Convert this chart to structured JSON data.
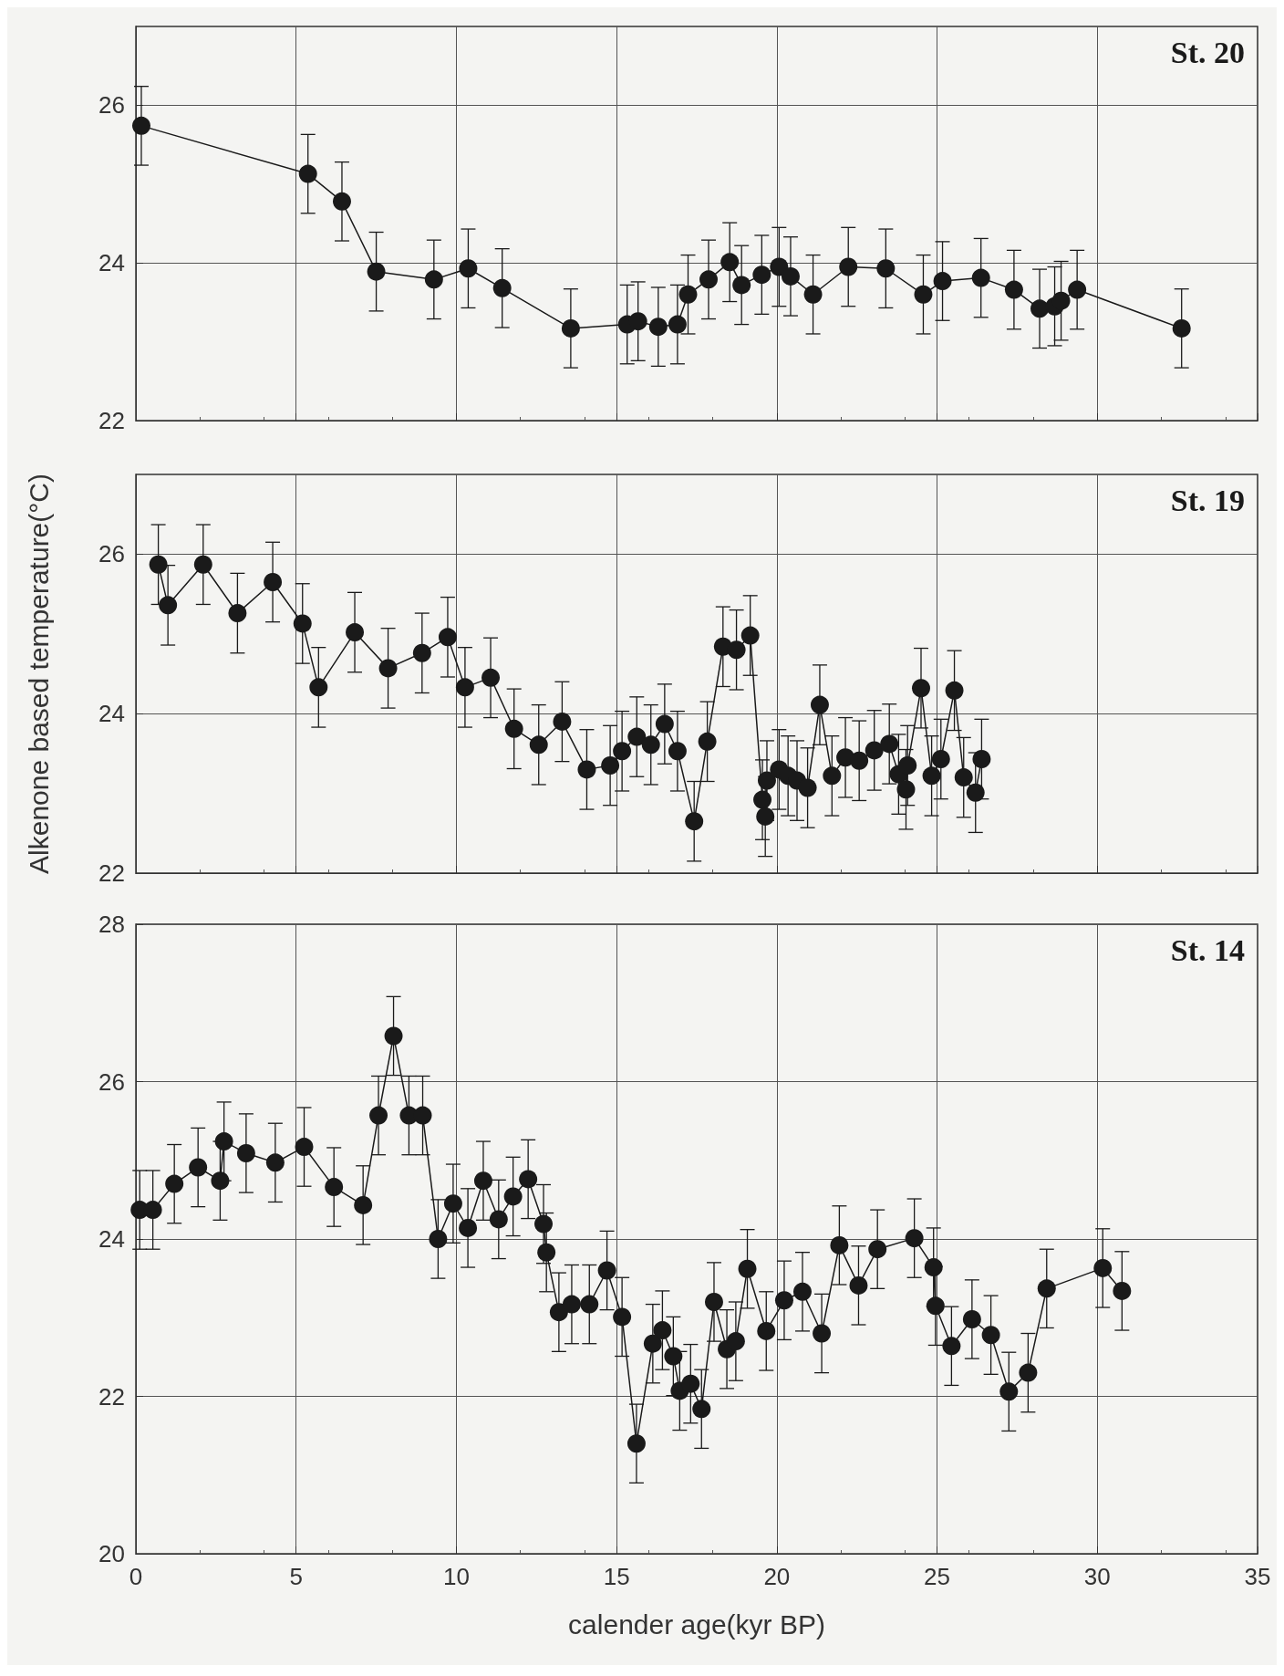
{
  "chart_data": [
    {
      "type": "line",
      "title": "St. 20",
      "xlim": [
        0,
        35
      ],
      "xticks": [
        0,
        5,
        10,
        15,
        20,
        25,
        30,
        35
      ],
      "ylim": [
        22,
        27
      ],
      "yticks": [
        22,
        24,
        26
      ],
      "grid": true,
      "marker": "circle",
      "line_style": "solid",
      "tick_labels": "y",
      "series": [
        {
          "color": "#1a1a1a",
          "x": [
            0.17,
            5.37,
            6.43,
            7.5,
            9.3,
            10.37,
            11.43,
            13.57,
            15.33,
            15.67,
            16.3,
            16.9,
            17.23,
            17.87,
            18.53,
            18.9,
            19.53,
            20.07,
            20.43,
            21.13,
            22.23,
            23.4,
            24.57,
            25.17,
            26.37,
            27.4,
            28.2,
            28.67,
            28.87,
            29.37,
            32.63
          ],
          "values": [
            25.74,
            25.13,
            24.78,
            23.89,
            23.79,
            23.93,
            23.68,
            23.17,
            23.22,
            23.26,
            23.19,
            23.22,
            23.6,
            23.79,
            24.01,
            23.72,
            23.85,
            23.95,
            23.83,
            23.6,
            23.95,
            23.93,
            23.6,
            23.77,
            23.81,
            23.66,
            23.42,
            23.45,
            23.52,
            23.66,
            23.17
          ],
          "errors": [
            0.5,
            0.5,
            0.5,
            0.5,
            0.5,
            0.5,
            0.5,
            0.5,
            0.5,
            0.5,
            0.5,
            0.5,
            0.5,
            0.5,
            0.5,
            0.5,
            0.5,
            0.5,
            0.5,
            0.5,
            0.5,
            0.5,
            0.5,
            0.5,
            0.5,
            0.5,
            0.5,
            0.5,
            0.5,
            0.5,
            0.5
          ]
        }
      ]
    },
    {
      "type": "line",
      "title": "St. 19",
      "ylabel": "Alkenone based temperature(°C)",
      "xlim": [
        0,
        35
      ],
      "xticks": [
        0,
        5,
        10,
        15,
        20,
        25,
        30,
        35
      ],
      "ylim": [
        22,
        27
      ],
      "yticks": [
        22,
        24,
        26
      ],
      "grid": true,
      "marker": "circle",
      "line_style": "solid",
      "tick_labels": "y",
      "series": [
        {
          "color": "#1a1a1a",
          "x": [
            0.7,
            1.0,
            2.1,
            3.17,
            4.27,
            5.2,
            5.7,
            6.83,
            7.87,
            8.93,
            9.73,
            10.27,
            11.07,
            11.8,
            12.57,
            13.3,
            14.07,
            14.8,
            15.17,
            15.63,
            16.07,
            16.5,
            16.9,
            17.42,
            17.83,
            18.32,
            18.74,
            19.17,
            19.55,
            19.64,
            19.69,
            20.07,
            20.35,
            20.63,
            20.96,
            21.34,
            21.72,
            22.14,
            22.57,
            23.04,
            23.51,
            23.8,
            24.03,
            24.08,
            24.5,
            24.83,
            25.12,
            25.54,
            25.83,
            26.2,
            26.39
          ],
          "values": [
            25.87,
            25.36,
            25.87,
            25.26,
            25.65,
            25.13,
            24.33,
            25.02,
            24.57,
            24.76,
            24.96,
            24.33,
            24.45,
            23.81,
            23.61,
            23.9,
            23.3,
            23.35,
            23.53,
            23.71,
            23.61,
            23.87,
            23.53,
            22.65,
            23.65,
            24.84,
            24.8,
            24.98,
            22.92,
            22.71,
            23.16,
            23.3,
            23.22,
            23.16,
            23.07,
            24.11,
            23.22,
            23.45,
            23.41,
            23.54,
            23.62,
            23.24,
            23.05,
            23.35,
            24.32,
            23.22,
            23.43,
            24.29,
            23.2,
            23.01,
            23.43
          ],
          "errors": [
            0.5,
            0.5,
            0.5,
            0.5,
            0.5,
            0.5,
            0.5,
            0.5,
            0.5,
            0.5,
            0.5,
            0.5,
            0.5,
            0.5,
            0.5,
            0.5,
            0.5,
            0.5,
            0.5,
            0.5,
            0.5,
            0.5,
            0.5,
            0.5,
            0.5,
            0.5,
            0.5,
            0.5,
            0.5,
            0.5,
            0.5,
            0.5,
            0.5,
            0.5,
            0.5,
            0.5,
            0.5,
            0.5,
            0.5,
            0.5,
            0.5,
            0.5,
            0.5,
            0.5,
            0.5,
            0.5,
            0.5,
            0.5,
            0.5,
            0.5,
            0.5
          ]
        }
      ]
    },
    {
      "type": "line",
      "title": "St. 14",
      "xlabel": "calender age(kyr BP)",
      "xlim": [
        0,
        35
      ],
      "xticks": [
        0,
        5,
        10,
        15,
        20,
        25,
        30,
        35
      ],
      "ylim": [
        20,
        28
      ],
      "yticks": [
        20,
        22,
        24,
        26,
        28
      ],
      "grid": true,
      "marker": "circle",
      "line_style": "solid",
      "series": [
        {
          "color": "#1a1a1a",
          "x": [
            0.12,
            0.53,
            1.2,
            1.94,
            2.63,
            2.75,
            3.44,
            4.35,
            5.25,
            6.18,
            7.09,
            7.57,
            8.04,
            8.52,
            8.95,
            9.43,
            9.9,
            10.36,
            10.84,
            11.32,
            11.77,
            12.24,
            12.72,
            12.81,
            13.2,
            13.6,
            14.15,
            14.7,
            15.17,
            15.62,
            16.13,
            16.43,
            16.77,
            16.97,
            17.31,
            17.65,
            18.04,
            18.44,
            18.72,
            19.08,
            19.67,
            20.23,
            20.8,
            21.4,
            21.95,
            22.55,
            23.14,
            24.29,
            24.89,
            24.95,
            25.45,
            26.09,
            26.68,
            27.24,
            27.84,
            28.42,
            30.17,
            30.77
          ],
          "values": [
            24.37,
            24.37,
            24.7,
            24.91,
            24.74,
            25.24,
            25.09,
            24.97,
            25.17,
            24.66,
            24.43,
            25.57,
            26.58,
            25.57,
            25.57,
            24.0,
            24.45,
            24.14,
            24.74,
            24.25,
            24.54,
            24.76,
            24.19,
            23.83,
            23.07,
            23.17,
            23.17,
            23.6,
            23.01,
            21.4,
            22.67,
            22.84,
            22.51,
            22.07,
            22.16,
            21.84,
            23.2,
            22.6,
            22.7,
            23.62,
            22.83,
            23.22,
            23.33,
            22.8,
            23.92,
            23.41,
            23.87,
            24.01,
            23.64,
            23.15,
            22.64,
            22.98,
            22.78,
            22.06,
            22.3,
            23.37,
            23.63,
            23.34
          ],
          "errors": [
            0.5,
            0.5,
            0.5,
            0.5,
            0.5,
            0.5,
            0.5,
            0.5,
            0.5,
            0.5,
            0.5,
            0.5,
            0.5,
            0.5,
            0.5,
            0.5,
            0.5,
            0.5,
            0.5,
            0.5,
            0.5,
            0.5,
            0.5,
            0.5,
            0.5,
            0.5,
            0.5,
            0.5,
            0.5,
            0.5,
            0.5,
            0.5,
            0.5,
            0.5,
            0.5,
            0.5,
            0.5,
            0.5,
            0.5,
            0.5,
            0.5,
            0.5,
            0.5,
            0.5,
            0.5,
            0.5,
            0.5,
            0.5,
            0.5,
            0.5,
            0.5,
            0.5,
            0.5,
            0.5,
            0.5,
            0.5,
            0.5,
            0.5
          ]
        }
      ]
    }
  ]
}
